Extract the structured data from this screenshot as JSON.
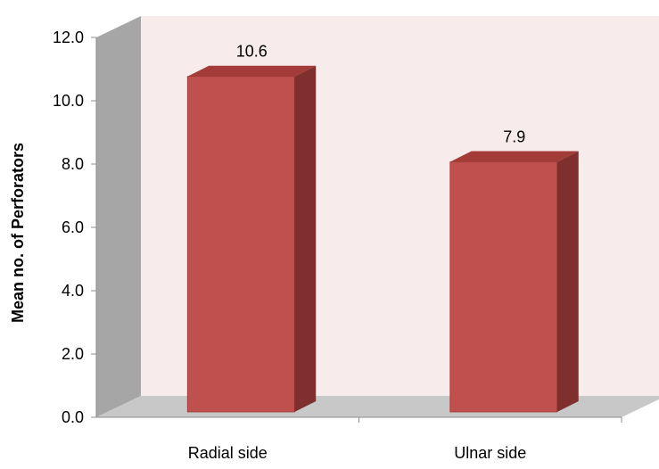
{
  "chart_data": {
    "type": "bar",
    "style": "3d-column",
    "categories": [
      "Radial side",
      "Ulnar side"
    ],
    "values": [
      10.6,
      7.9
    ],
    "data_labels": [
      "10.6",
      "7.9"
    ],
    "title": "",
    "xlabel": "",
    "ylabel": "Mean no. of Perforators",
    "ylim": [
      0,
      12
    ],
    "yticks": [
      "0.0",
      "2.0",
      "4.0",
      "6.0",
      "8.0",
      "10.0",
      "12.0"
    ],
    "grid": false,
    "legend": "none",
    "colors": {
      "bar_front": "#c0504d",
      "bar_side": "#7f2f2d",
      "bar_top": "#a33c39",
      "back_wall": "#f7ebec",
      "side_wall": "#a6a6a6",
      "floor": "#c8c8c8"
    }
  }
}
